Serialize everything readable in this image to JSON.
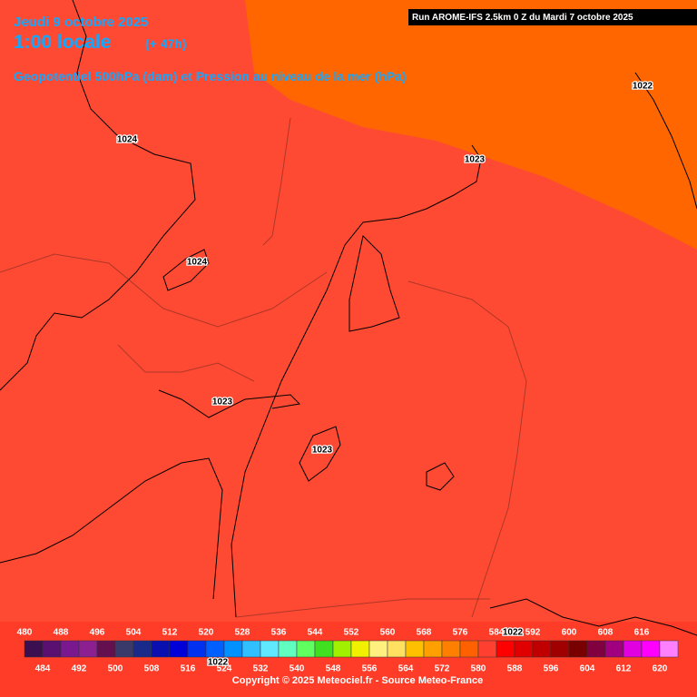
{
  "header": {
    "date": "Jeudi 9 octobre 2025",
    "time": "1:00 locale",
    "lead": "(+ 47h)",
    "parameter": "Geopotentiel 500hPa (dam) et Pression au niveau de la mer (hPa)",
    "run": "Run AROME-IFS 2.5km 0 Z du Mardi 7 octobre 2025"
  },
  "contour_labels": [
    "1024",
    "1024",
    "1023",
    "1022",
    "1023",
    "1023",
    "1022",
    "1022"
  ],
  "legend": {
    "items": [
      {
        "label": 480,
        "color": "#3c1050"
      },
      {
        "label": 484,
        "color": "#5a1070"
      },
      {
        "label": 488,
        "color": "#7a1890"
      },
      {
        "label": 492,
        "color": "#8c2090"
      },
      {
        "label": 496,
        "color": "#641050"
      },
      {
        "label": 500,
        "color": "#3a3a6a"
      },
      {
        "label": 504,
        "color": "#1a2a8a"
      },
      {
        "label": 508,
        "color": "#0a10b0"
      },
      {
        "label": 512,
        "color": "#0000d8"
      },
      {
        "label": 516,
        "color": "#0030f0"
      },
      {
        "label": 520,
        "color": "#0060ff"
      },
      {
        "label": 524,
        "color": "#0090ff"
      },
      {
        "label": 528,
        "color": "#30c0ff"
      },
      {
        "label": 532,
        "color": "#60e8ff"
      },
      {
        "label": 536,
        "color": "#60ffc0"
      },
      {
        "label": 540,
        "color": "#60ff60"
      },
      {
        "label": 544,
        "color": "#40e020"
      },
      {
        "label": 548,
        "color": "#a0f000"
      },
      {
        "label": 552,
        "color": "#f0f000"
      },
      {
        "label": 556,
        "color": "#fff080"
      },
      {
        "label": 560,
        "color": "#ffe060"
      },
      {
        "label": 564,
        "color": "#ffc000"
      },
      {
        "label": 568,
        "color": "#ffa000"
      },
      {
        "label": 572,
        "color": "#ff8000"
      },
      {
        "label": 576,
        "color": "#ff6000"
      },
      {
        "label": 580,
        "color": "#ff4030"
      },
      {
        "label": 584,
        "color": "#ff0000"
      },
      {
        "label": 588,
        "color": "#e00000"
      },
      {
        "label": 592,
        "color": "#c00000"
      },
      {
        "label": 596,
        "color": "#a00000"
      },
      {
        "label": 600,
        "color": "#780000"
      },
      {
        "label": 604,
        "color": "#800040"
      },
      {
        "label": 608,
        "color": "#a00080"
      },
      {
        "label": 612,
        "color": "#e000e0"
      },
      {
        "label": 616,
        "color": "#ff00ff"
      },
      {
        "label": 620,
        "color": "#ff80ff"
      }
    ]
  },
  "footer": {
    "copyright": "Copyright © 2025 Meteociel.fr - Source Meteo-France"
  }
}
